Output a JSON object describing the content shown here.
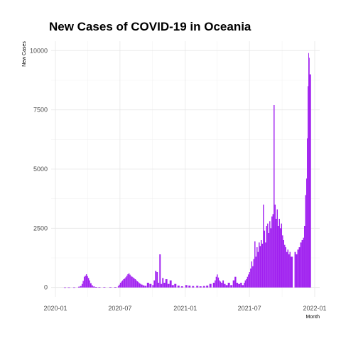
{
  "chart_data": {
    "type": "bar",
    "title": "New Cases of COVID-19 in Oceania",
    "xlabel": "Month",
    "ylabel": "New Cases",
    "x_ticks": [
      "2020-01",
      "2020-07",
      "2021-01",
      "2021-07",
      "2022-01"
    ],
    "y_ticks": [
      "0",
      "2500",
      "5000",
      "7500",
      "10000"
    ],
    "ylim": [
      -400,
      10400
    ],
    "xlim": [
      "2019-12-20",
      "2022-01-15"
    ],
    "grid": true,
    "bar_color": "#a020f0",
    "points": [
      [
        "2020-01-25",
        2
      ],
      [
        "2020-02-05",
        3
      ],
      [
        "2020-02-20",
        4
      ],
      [
        "2020-03-05",
        30
      ],
      [
        "2020-03-10",
        60
      ],
      [
        "2020-03-15",
        150
      ],
      [
        "2020-03-18",
        280
      ],
      [
        "2020-03-21",
        450
      ],
      [
        "2020-03-24",
        500
      ],
      [
        "2020-03-27",
        560
      ],
      [
        "2020-03-30",
        480
      ],
      [
        "2020-04-02",
        400
      ],
      [
        "2020-04-05",
        300
      ],
      [
        "2020-04-08",
        180
      ],
      [
        "2020-04-12",
        90
      ],
      [
        "2020-04-16",
        40
      ],
      [
        "2020-04-22",
        20
      ],
      [
        "2020-05-01",
        15
      ],
      [
        "2020-05-15",
        10
      ],
      [
        "2020-06-01",
        15
      ],
      [
        "2020-06-15",
        20
      ],
      [
        "2020-06-25",
        60
      ],
      [
        "2020-06-28",
        120
      ],
      [
        "2020-07-01",
        200
      ],
      [
        "2020-07-04",
        250
      ],
      [
        "2020-07-07",
        300
      ],
      [
        "2020-07-10",
        350
      ],
      [
        "2020-07-13",
        380
      ],
      [
        "2020-07-16",
        430
      ],
      [
        "2020-07-19",
        500
      ],
      [
        "2020-07-22",
        560
      ],
      [
        "2020-07-25",
        600
      ],
      [
        "2020-07-28",
        540
      ],
      [
        "2020-07-31",
        480
      ],
      [
        "2020-08-03",
        450
      ],
      [
        "2020-08-06",
        420
      ],
      [
        "2020-08-09",
        380
      ],
      [
        "2020-08-12",
        350
      ],
      [
        "2020-08-15",
        300
      ],
      [
        "2020-08-18",
        260
      ],
      [
        "2020-08-21",
        220
      ],
      [
        "2020-08-24",
        180
      ],
      [
        "2020-08-27",
        150
      ],
      [
        "2020-08-30",
        120
      ],
      [
        "2020-09-03",
        90
      ],
      [
        "2020-09-08",
        70
      ],
      [
        "2020-09-15",
        200
      ],
      [
        "2020-09-22",
        150
      ],
      [
        "2020-09-30",
        100
      ],
      [
        "2020-10-04",
        300
      ],
      [
        "2020-10-08",
        700
      ],
      [
        "2020-10-12",
        650
      ],
      [
        "2020-10-16",
        200
      ],
      [
        "2020-10-20",
        1400
      ],
      [
        "2020-10-24",
        150
      ],
      [
        "2020-10-28",
        400
      ],
      [
        "2020-11-01",
        200
      ],
      [
        "2020-11-06",
        350
      ],
      [
        "2020-11-12",
        150
      ],
      [
        "2020-11-18",
        300
      ],
      [
        "2020-11-24",
        100
      ],
      [
        "2020-12-01",
        150
      ],
      [
        "2020-12-10",
        80
      ],
      [
        "2020-12-20",
        50
      ],
      [
        "2021-01-01",
        100
      ],
      [
        "2021-01-10",
        80
      ],
      [
        "2021-01-20",
        60
      ],
      [
        "2021-02-01",
        70
      ],
      [
        "2021-02-10",
        50
      ],
      [
        "2021-02-20",
        60
      ],
      [
        "2021-03-01",
        80
      ],
      [
        "2021-03-10",
        150
      ],
      [
        "2021-03-20",
        200
      ],
      [
        "2021-03-25",
        300
      ],
      [
        "2021-03-28",
        450
      ],
      [
        "2021-03-31",
        550
      ],
      [
        "2021-04-03",
        420
      ],
      [
        "2021-04-06",
        300
      ],
      [
        "2021-04-09",
        250
      ],
      [
        "2021-04-12",
        200
      ],
      [
        "2021-04-16",
        300
      ],
      [
        "2021-04-20",
        150
      ],
      [
        "2021-04-25",
        100
      ],
      [
        "2021-05-01",
        200
      ],
      [
        "2021-05-08",
        100
      ],
      [
        "2021-05-15",
        300
      ],
      [
        "2021-05-20",
        450
      ],
      [
        "2021-05-25",
        200
      ],
      [
        "2021-05-30",
        150
      ],
      [
        "2021-06-05",
        200
      ],
      [
        "2021-06-10",
        100
      ],
      [
        "2021-06-15",
        200
      ],
      [
        "2021-06-18",
        300
      ],
      [
        "2021-06-21",
        350
      ],
      [
        "2021-06-24",
        450
      ],
      [
        "2021-06-27",
        550
      ],
      [
        "2021-06-30",
        650
      ],
      [
        "2021-07-03",
        800
      ],
      [
        "2021-07-06",
        1100
      ],
      [
        "2021-07-09",
        900
      ],
      [
        "2021-07-12",
        1200
      ],
      [
        "2021-07-15",
        1950
      ],
      [
        "2021-07-18",
        1300
      ],
      [
        "2021-07-21",
        1700
      ],
      [
        "2021-07-24",
        1500
      ],
      [
        "2021-07-27",
        1900
      ],
      [
        "2021-07-30",
        1750
      ],
      [
        "2021-08-02",
        2000
      ],
      [
        "2021-08-05",
        1850
      ],
      [
        "2021-08-08",
        3500
      ],
      [
        "2021-08-11",
        2400
      ],
      [
        "2021-08-14",
        1900
      ],
      [
        "2021-08-17",
        2600
      ],
      [
        "2021-08-20",
        2700
      ],
      [
        "2021-08-23",
        2300
      ],
      [
        "2021-08-26",
        2800
      ],
      [
        "2021-08-29",
        2500
      ],
      [
        "2021-09-01",
        3000
      ],
      [
        "2021-09-04",
        3100
      ],
      [
        "2021-09-07",
        7700
      ],
      [
        "2021-09-10",
        3500
      ],
      [
        "2021-09-13",
        2900
      ],
      [
        "2021-09-16",
        3300
      ],
      [
        "2021-09-19",
        2600
      ],
      [
        "2021-09-22",
        2900
      ],
      [
        "2021-09-25",
        2500
      ],
      [
        "2021-09-28",
        2700
      ],
      [
        "2021-10-01",
        2200
      ],
      [
        "2021-10-04",
        2000
      ],
      [
        "2021-10-07",
        1800
      ],
      [
        "2021-10-10",
        1700
      ],
      [
        "2021-10-13",
        1500
      ],
      [
        "2021-10-16",
        1600
      ],
      [
        "2021-10-19",
        1400
      ],
      [
        "2021-10-22",
        1500
      ],
      [
        "2021-10-25",
        1300
      ],
      [
        "2021-11-05",
        1500
      ],
      [
        "2021-11-09",
        1400
      ],
      [
        "2021-11-13",
        1600
      ],
      [
        "2021-11-17",
        1700
      ],
      [
        "2021-11-21",
        1900
      ],
      [
        "2021-11-25",
        2000
      ],
      [
        "2021-11-29",
        2100
      ],
      [
        "2021-12-02",
        2600
      ],
      [
        "2021-12-05",
        3900
      ],
      [
        "2021-12-08",
        4600
      ],
      [
        "2021-12-10",
        6300
      ],
      [
        "2021-12-12",
        8500
      ],
      [
        "2021-12-14",
        9900
      ],
      [
        "2021-12-16",
        9700
      ],
      [
        "2021-12-17",
        9000
      ]
    ]
  }
}
